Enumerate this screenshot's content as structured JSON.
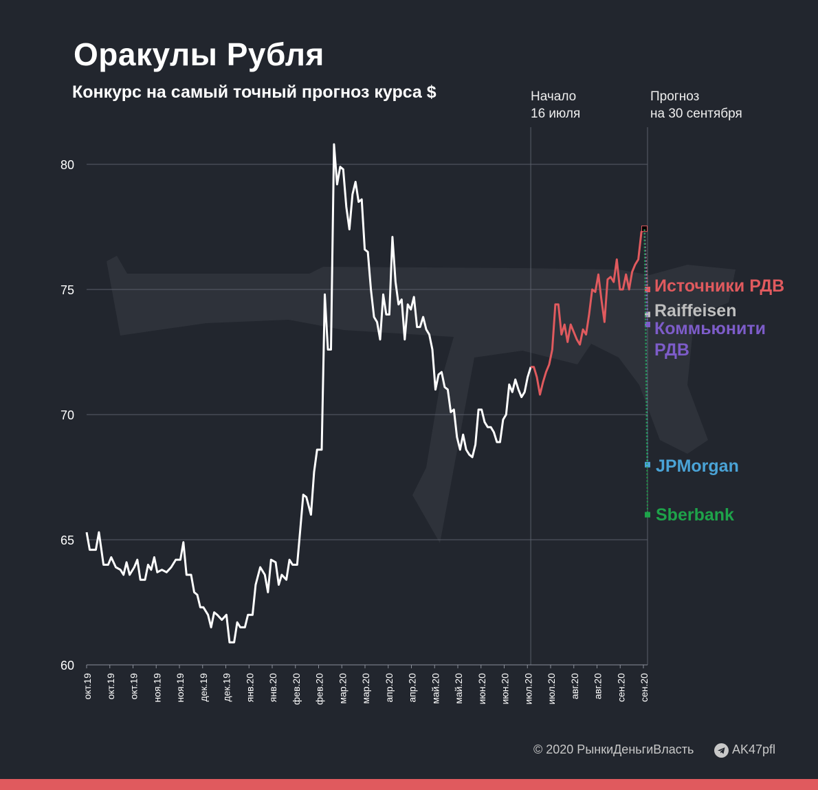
{
  "header": {
    "title": "Оракулы Рубля",
    "subtitle": "Конкурс на самый точный прогноз курса $"
  },
  "annotations": {
    "start_line1": "Начало",
    "start_line2": "16 июля",
    "forecast_line1": "Прогноз",
    "forecast_line2": "на 30 сентября"
  },
  "footer": {
    "copyright": "© 2020  РынкиДеньгиВласть",
    "channel": "AK47pfl",
    "channel_icon": "telegram-icon"
  },
  "colors": {
    "background": "#22262e",
    "history_line": "#ffffff",
    "contest_line": "#e05a5e",
    "grid": "#5a5f6a",
    "accent_bar": "#e05a5e"
  },
  "chart_data": {
    "type": "line",
    "title": "Оракулы Рубля",
    "ylim": [
      60,
      81
    ],
    "y_ticks": [
      60,
      65,
      70,
      75,
      80
    ],
    "grid": "horizontal",
    "x_ticks": [
      "окт.19",
      "окт.19",
      "окт.19",
      "ноя.19",
      "ноя.19",
      "дек.19",
      "дек.19",
      "янв.20",
      "янв.20",
      "фев.20",
      "фев.20",
      "мар.20",
      "мар.20",
      "апр.20",
      "апр.20",
      "май.20",
      "май.20",
      "июн.20",
      "июн.20",
      "июл.20",
      "июл.20",
      "авг.20",
      "авг.20",
      "сен.20",
      "сен.20"
    ],
    "x_start": "2019-10-01",
    "x_end": "2020-09-30",
    "contest_start": "2020-07-16",
    "series": [
      {
        "segment": "history",
        "color": "#ffffff",
        "points": [
          [
            "2019-10-01",
            65.3
          ],
          [
            "2019-10-03",
            64.6
          ],
          [
            "2019-10-07",
            64.6
          ],
          [
            "2019-10-09",
            65.3
          ],
          [
            "2019-10-12",
            64.0
          ],
          [
            "2019-10-15",
            64.0
          ],
          [
            "2019-10-17",
            64.3
          ],
          [
            "2019-10-20",
            63.9
          ],
          [
            "2019-10-23",
            63.8
          ],
          [
            "2019-10-25",
            63.6
          ],
          [
            "2019-10-27",
            64.1
          ],
          [
            "2019-10-29",
            63.6
          ],
          [
            "2019-11-01",
            63.9
          ],
          [
            "2019-11-03",
            64.2
          ],
          [
            "2019-11-05",
            63.4
          ],
          [
            "2019-11-08",
            63.4
          ],
          [
            "2019-11-10",
            64.0
          ],
          [
            "2019-11-12",
            63.8
          ],
          [
            "2019-11-14",
            64.3
          ],
          [
            "2019-11-16",
            63.7
          ],
          [
            "2019-11-19",
            63.8
          ],
          [
            "2019-11-22",
            63.7
          ],
          [
            "2019-11-25",
            63.9
          ],
          [
            "2019-11-28",
            64.2
          ],
          [
            "2019-12-01",
            64.2
          ],
          [
            "2019-12-03",
            64.9
          ],
          [
            "2019-12-05",
            63.6
          ],
          [
            "2019-12-08",
            63.6
          ],
          [
            "2019-12-10",
            62.9
          ],
          [
            "2019-12-12",
            62.8
          ],
          [
            "2019-12-14",
            62.3
          ],
          [
            "2019-12-16",
            62.3
          ],
          [
            "2019-12-19",
            62.0
          ],
          [
            "2019-12-21",
            61.5
          ],
          [
            "2019-12-23",
            62.1
          ],
          [
            "2019-12-25",
            62.0
          ],
          [
            "2019-12-28",
            61.8
          ],
          [
            "2019-12-31",
            62.0
          ],
          [
            "2020-01-02",
            60.9
          ],
          [
            "2020-01-05",
            60.9
          ],
          [
            "2020-01-07",
            61.7
          ],
          [
            "2020-01-09",
            61.5
          ],
          [
            "2020-01-12",
            61.5
          ],
          [
            "2020-01-14",
            62.0
          ],
          [
            "2020-01-17",
            62.0
          ],
          [
            "2020-01-19",
            63.2
          ],
          [
            "2020-01-22",
            63.9
          ],
          [
            "2020-01-25",
            63.6
          ],
          [
            "2020-01-27",
            62.9
          ],
          [
            "2020-01-29",
            64.2
          ],
          [
            "2020-02-01",
            64.1
          ],
          [
            "2020-02-03",
            63.2
          ],
          [
            "2020-02-05",
            63.6
          ],
          [
            "2020-02-08",
            63.4
          ],
          [
            "2020-02-10",
            64.2
          ],
          [
            "2020-02-12",
            64.0
          ],
          [
            "2020-02-15",
            64.0
          ],
          [
            "2020-02-17",
            65.4
          ],
          [
            "2020-02-19",
            66.8
          ],
          [
            "2020-02-21",
            66.7
          ],
          [
            "2020-02-24",
            66.0
          ],
          [
            "2020-02-26",
            67.7
          ],
          [
            "2020-02-28",
            68.6
          ],
          [
            "2020-03-02",
            68.6
          ],
          [
            "2020-03-04",
            74.8
          ],
          [
            "2020-03-06",
            72.6
          ],
          [
            "2020-03-08",
            72.6
          ],
          [
            "2020-03-10",
            80.8
          ],
          [
            "2020-03-12",
            79.2
          ],
          [
            "2020-03-14",
            79.9
          ],
          [
            "2020-03-16",
            79.8
          ],
          [
            "2020-03-18",
            78.3
          ],
          [
            "2020-03-20",
            77.4
          ],
          [
            "2020-03-22",
            78.8
          ],
          [
            "2020-03-24",
            79.3
          ],
          [
            "2020-03-26",
            78.5
          ],
          [
            "2020-03-28",
            78.6
          ],
          [
            "2020-03-30",
            76.6
          ],
          [
            "2020-04-01",
            76.5
          ],
          [
            "2020-04-03",
            75.0
          ],
          [
            "2020-04-05",
            73.9
          ],
          [
            "2020-04-07",
            73.7
          ],
          [
            "2020-04-09",
            73.0
          ],
          [
            "2020-04-11",
            74.8
          ],
          [
            "2020-04-13",
            74.0
          ],
          [
            "2020-04-15",
            74.0
          ],
          [
            "2020-04-17",
            77.1
          ],
          [
            "2020-04-19",
            75.3
          ],
          [
            "2020-04-21",
            74.4
          ],
          [
            "2020-04-23",
            74.6
          ],
          [
            "2020-04-25",
            73.0
          ],
          [
            "2020-04-27",
            74.4
          ],
          [
            "2020-04-29",
            74.2
          ],
          [
            "2020-05-01",
            74.7
          ],
          [
            "2020-05-03",
            73.5
          ],
          [
            "2020-05-05",
            73.5
          ],
          [
            "2020-05-07",
            73.9
          ],
          [
            "2020-05-09",
            73.4
          ],
          [
            "2020-05-11",
            73.2
          ],
          [
            "2020-05-13",
            72.6
          ],
          [
            "2020-05-15",
            71.0
          ],
          [
            "2020-05-17",
            71.6
          ],
          [
            "2020-05-19",
            71.7
          ],
          [
            "2020-05-21",
            71.1
          ],
          [
            "2020-05-23",
            71.0
          ],
          [
            "2020-05-25",
            70.1
          ],
          [
            "2020-05-27",
            70.2
          ],
          [
            "2020-05-29",
            69.1
          ],
          [
            "2020-05-31",
            68.6
          ],
          [
            "2020-06-02",
            69.2
          ],
          [
            "2020-06-04",
            68.6
          ],
          [
            "2020-06-06",
            68.4
          ],
          [
            "2020-06-08",
            68.3
          ],
          [
            "2020-06-10",
            68.8
          ],
          [
            "2020-06-12",
            70.2
          ],
          [
            "2020-06-14",
            70.2
          ],
          [
            "2020-06-16",
            69.7
          ],
          [
            "2020-06-18",
            69.5
          ],
          [
            "2020-06-20",
            69.5
          ],
          [
            "2020-06-22",
            69.3
          ],
          [
            "2020-06-24",
            68.9
          ],
          [
            "2020-06-26",
            68.9
          ],
          [
            "2020-06-28",
            69.8
          ],
          [
            "2020-06-30",
            70.0
          ],
          [
            "2020-07-02",
            71.2
          ],
          [
            "2020-07-04",
            70.9
          ],
          [
            "2020-07-06",
            71.4
          ],
          [
            "2020-07-08",
            71.0
          ],
          [
            "2020-07-10",
            70.7
          ],
          [
            "2020-07-12",
            70.9
          ],
          [
            "2020-07-14",
            71.5
          ],
          [
            "2020-07-16",
            71.9
          ]
        ]
      },
      {
        "segment": "contest_period",
        "color": "#e05a5e",
        "points": [
          [
            "2020-07-16",
            71.9
          ],
          [
            "2020-07-18",
            71.9
          ],
          [
            "2020-07-20",
            71.5
          ],
          [
            "2020-07-22",
            70.8
          ],
          [
            "2020-07-24",
            71.3
          ],
          [
            "2020-07-26",
            71.7
          ],
          [
            "2020-07-28",
            72.0
          ],
          [
            "2020-07-30",
            72.6
          ],
          [
            "2020-08-01",
            74.4
          ],
          [
            "2020-08-03",
            74.4
          ],
          [
            "2020-08-05",
            73.2
          ],
          [
            "2020-08-07",
            73.6
          ],
          [
            "2020-08-09",
            72.9
          ],
          [
            "2020-08-11",
            73.6
          ],
          [
            "2020-08-13",
            73.3
          ],
          [
            "2020-08-15",
            73.0
          ],
          [
            "2020-08-17",
            72.8
          ],
          [
            "2020-08-19",
            73.4
          ],
          [
            "2020-08-21",
            73.2
          ],
          [
            "2020-08-23",
            74.0
          ],
          [
            "2020-08-25",
            75.0
          ],
          [
            "2020-08-27",
            74.9
          ],
          [
            "2020-08-29",
            75.6
          ],
          [
            "2020-08-31",
            74.6
          ],
          [
            "2020-09-02",
            73.7
          ],
          [
            "2020-09-04",
            75.4
          ],
          [
            "2020-09-06",
            75.5
          ],
          [
            "2020-09-08",
            75.3
          ],
          [
            "2020-09-10",
            76.2
          ],
          [
            "2020-09-12",
            75.0
          ],
          [
            "2020-09-14",
            75.0
          ],
          [
            "2020-09-16",
            75.6
          ],
          [
            "2020-09-18",
            75.0
          ],
          [
            "2020-09-20",
            75.7
          ],
          [
            "2020-09-22",
            76.0
          ],
          [
            "2020-09-24",
            76.2
          ],
          [
            "2020-09-26",
            77.3
          ],
          [
            "2020-09-28",
            77.4
          ]
        ]
      }
    ],
    "forecasts": [
      {
        "name": "Источники РДВ",
        "value": 75.0,
        "color": "#e05a5e"
      },
      {
        "name": "Raiffeisen",
        "value": 74.0,
        "color": "#bfbfbf"
      },
      {
        "name": "Коммьюнити РДВ",
        "value": 73.6,
        "color": "#7d5cc9"
      },
      {
        "name": "JPMorgan",
        "value": 68.0,
        "color": "#4aa3d6"
      },
      {
        "name": "Sberbank",
        "value": 66.0,
        "color": "#1ea34a"
      }
    ],
    "last_value_marker": 77.4
  }
}
